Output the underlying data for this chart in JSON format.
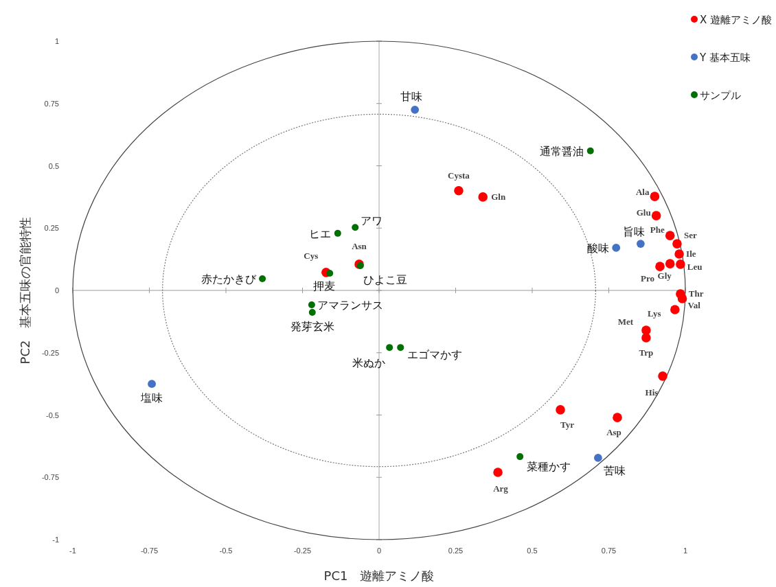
{
  "chart_data": {
    "type": "scatter",
    "xlabel": "PC1　遊離アミノ酸",
    "ylabel": "PC2　基本五味の官能特性",
    "xlim": [
      -1,
      1
    ],
    "ylim": [
      -1,
      1
    ],
    "xticks": [
      -1,
      -0.75,
      -0.5,
      -0.25,
      0,
      0.25,
      0.5,
      0.75,
      1
    ],
    "yticks": [
      -1,
      -0.75,
      -0.5,
      -0.25,
      0,
      0.25,
      0.5,
      0.75,
      1
    ],
    "grid": false,
    "ref_lines": [
      {
        "axis": "x",
        "value": 0,
        "color": "#a6a6a6"
      },
      {
        "axis": "y",
        "value": 0,
        "color": "#999999"
      }
    ],
    "legend": "top right",
    "marker": "circle",
    "series": [
      {
        "name": "X 遊離アミノ酸",
        "color": "#ff0000",
        "x": [
          0.9,
          0.905,
          0.95,
          0.973,
          0.98,
          0.984,
          0.95,
          0.917,
          0.984,
          0.99,
          0.966,
          0.872,
          0.872,
          0.926,
          0.592,
          0.778,
          0.388,
          0.26,
          0.339,
          -0.173,
          -0.065
        ],
        "values": [
          0.377,
          0.3,
          0.22,
          0.187,
          0.146,
          0.105,
          0.107,
          0.096,
          -0.014,
          -0.033,
          -0.077,
          -0.16,
          -0.19,
          -0.344,
          -0.479,
          -0.51,
          -0.73,
          0.4,
          0.375,
          0.072,
          0.105
        ]
      },
      {
        "name": "Y 基本五味",
        "color": "#4472c4",
        "x": [
          0.117,
          0.854,
          0.774,
          0.715,
          -0.742
        ],
        "values": [
          0.725,
          0.187,
          0.171,
          -0.672,
          -0.375
        ]
      },
      {
        "name": "サンプル",
        "color": "#007000",
        "x": [
          0.69,
          -0.135,
          -0.078,
          -0.161,
          -0.061,
          -0.381,
          -0.22,
          -0.218,
          0.034,
          0.07,
          0.46
        ],
        "values": [
          0.56,
          0.229,
          0.253,
          0.069,
          0.099,
          0.047,
          -0.058,
          -0.088,
          -0.229,
          -0.229,
          -0.667
        ]
      }
    ],
    "annotations": [
      {
        "text": "Ala",
        "x": 0.9,
        "y": 0.377
      },
      {
        "text": "Glu",
        "x": 0.905,
        "y": 0.3
      },
      {
        "text": "Phe",
        "x": 0.95,
        "y": 0.22
      },
      {
        "text": "Ser",
        "x": 0.973,
        "y": 0.187
      },
      {
        "text": "Ile",
        "x": 0.98,
        "y": 0.146
      },
      {
        "text": "Leu",
        "x": 0.984,
        "y": 0.105
      },
      {
        "text": "Gly",
        "x": 0.95,
        "y": 0.107
      },
      {
        "text": "Pro",
        "x": 0.917,
        "y": 0.096
      },
      {
        "text": "Thr",
        "x": 0.984,
        "y": -0.014
      },
      {
        "text": "Val",
        "x": 0.99,
        "y": -0.033
      },
      {
        "text": "Lys",
        "x": 0.966,
        "y": -0.077
      },
      {
        "text": "Met",
        "x": 0.872,
        "y": -0.16
      },
      {
        "text": "Trp",
        "x": 0.872,
        "y": -0.19
      },
      {
        "text": "His",
        "x": 0.926,
        "y": -0.344
      },
      {
        "text": "Tyr",
        "x": 0.592,
        "y": -0.479
      },
      {
        "text": "Asp",
        "x": 0.778,
        "y": -0.51
      },
      {
        "text": "Arg",
        "x": 0.388,
        "y": -0.73
      },
      {
        "text": "Cysta",
        "x": 0.26,
        "y": 0.4
      },
      {
        "text": "Gln",
        "x": 0.339,
        "y": 0.375
      },
      {
        "text": "Cys",
        "x": -0.173,
        "y": 0.072
      },
      {
        "text": "Asn",
        "x": -0.065,
        "y": 0.105
      },
      {
        "text": "甘味",
        "x": 0.117,
        "y": 0.725
      },
      {
        "text": "旨味",
        "x": 0.854,
        "y": 0.187
      },
      {
        "text": "酸味",
        "x": 0.774,
        "y": 0.171
      },
      {
        "text": "苦味",
        "x": 0.715,
        "y": -0.672
      },
      {
        "text": "塩味",
        "x": -0.742,
        "y": -0.375
      },
      {
        "text": "通常醤油",
        "x": 0.69,
        "y": 0.56
      },
      {
        "text": "ヒエ",
        "x": -0.135,
        "y": 0.229
      },
      {
        "text": "アワ",
        "x": -0.078,
        "y": 0.253
      },
      {
        "text": "押麦",
        "x": -0.161,
        "y": 0.069
      },
      {
        "text": "ひよこ豆",
        "x": -0.061,
        "y": 0.099
      },
      {
        "text": "赤たかきび",
        "x": -0.381,
        "y": 0.047
      },
      {
        "text": "アマランサス",
        "x": -0.22,
        "y": -0.058
      },
      {
        "text": "発芽玄米",
        "x": -0.218,
        "y": -0.088
      },
      {
        "text": "米ぬか",
        "x": 0.034,
        "y": -0.229
      },
      {
        "text": "エゴマかす",
        "x": 0.07,
        "y": -0.229
      },
      {
        "text": "菜種かす",
        "x": 0.46,
        "y": -0.667
      }
    ]
  }
}
